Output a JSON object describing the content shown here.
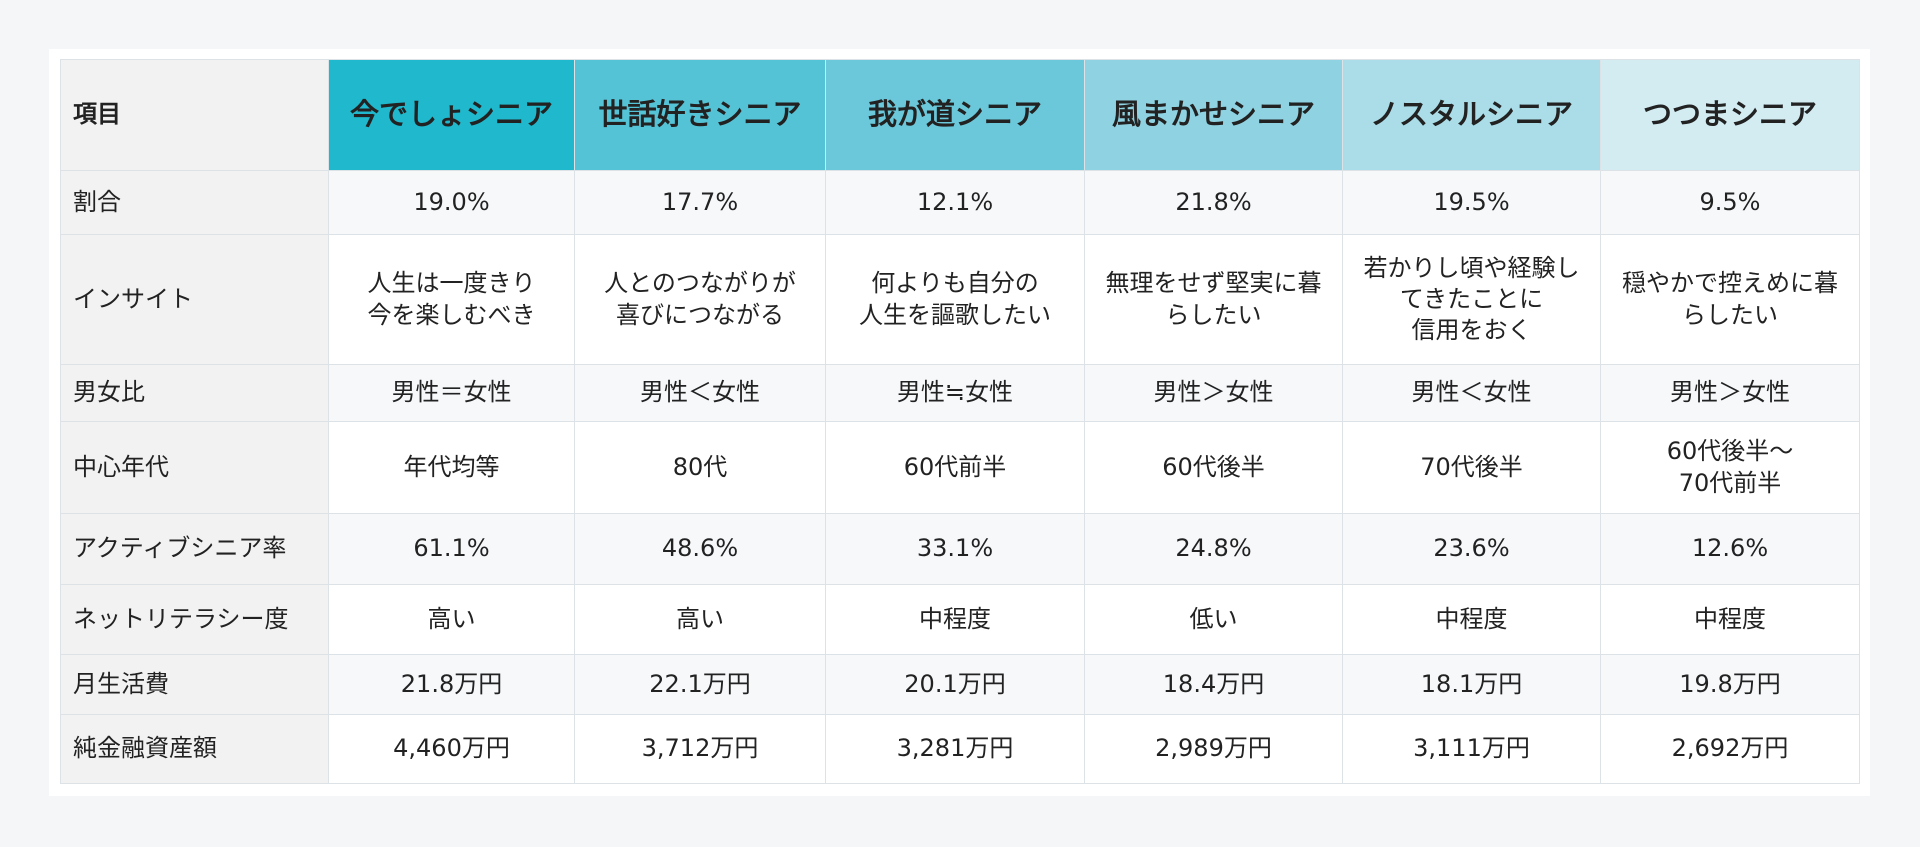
{
  "table": {
    "corner": "項目",
    "columns": [
      "今でしょシニア",
      "世話好きシニア",
      "我が道シニア",
      "風まかせシニア",
      "ノスタルシニア",
      "つつまシニア"
    ],
    "rows": [
      {
        "label": "割合",
        "cells": [
          "19.0%",
          "17.7%",
          "12.1%",
          "21.8%",
          "19.5%",
          "9.5%"
        ]
      },
      {
        "label": "インサイト",
        "cells": [
          "人生は一度きり\n今を楽しむべき",
          "人とのつながりが\n喜びにつながる",
          "何よりも自分の\n人生を謳歌したい",
          "無理をせず堅実に暮らしたい",
          "若かりし頃や経験してきたことに\n信用をおく",
          "穏やかで控えめに暮らしたい"
        ]
      },
      {
        "label": "男女比",
        "cells": [
          "男性＝女性",
          "男性＜女性",
          "男性≒女性",
          "男性＞女性",
          "男性＜女性",
          "男性＞女性"
        ]
      },
      {
        "label": "中心年代",
        "cells": [
          "年代均等",
          "80代",
          "60代前半",
          "60代後半",
          "70代後半",
          "60代後半〜\n70代前半"
        ]
      },
      {
        "label": "アクティブシニア率",
        "cells": [
          "61.1%",
          "48.6%",
          "33.1%",
          "24.8%",
          "23.6%",
          "12.6%"
        ]
      },
      {
        "label": "ネットリテラシー度",
        "cells": [
          "高い",
          "高い",
          "中程度",
          "低い",
          "中程度",
          "中程度"
        ]
      },
      {
        "label": "月生活費",
        "cells": [
          "21.8万円",
          "22.1万円",
          "20.1万円",
          "18.4万円",
          "18.1万円",
          "19.8万円"
        ]
      },
      {
        "label": "純金融資産額",
        "cells": [
          "4,460万円",
          "3,712万円",
          "3,281万円",
          "2,989万円",
          "3,111万円",
          "2,692万円"
        ]
      }
    ]
  }
}
